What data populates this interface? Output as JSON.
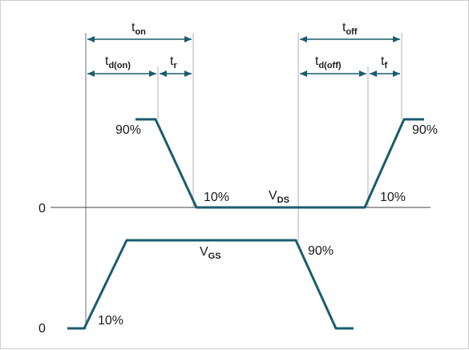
{
  "diagram": {
    "labels": {
      "t_on": {
        "main": "t",
        "sub": "on"
      },
      "t_off": {
        "main": "t",
        "sub": "off"
      },
      "t_d_on": {
        "main": "t",
        "sub": "d(on)"
      },
      "t_r": {
        "main": "t",
        "sub": "r"
      },
      "t_d_off": {
        "main": "t",
        "sub": "d(off)"
      },
      "t_f": {
        "main": "t",
        "sub": "f"
      },
      "v_ds": {
        "main": "V",
        "sub": "DS"
      },
      "v_gs": {
        "main": "V",
        "sub": "GS"
      }
    },
    "percent_labels": {
      "ds_90_left": "90%",
      "ds_90_right": "90%",
      "ds_10_left": "10%",
      "ds_10_right": "10%",
      "gs_10": "10%",
      "gs_90": "90%"
    },
    "zero_labels": {
      "ds": "0",
      "gs": "0"
    },
    "colors": {
      "waveform": "#1a5c6e",
      "arrow": "#1a5c6e",
      "guide": "#b0b0b0",
      "axis": "#404040",
      "text": "#1a1a1a"
    }
  }
}
